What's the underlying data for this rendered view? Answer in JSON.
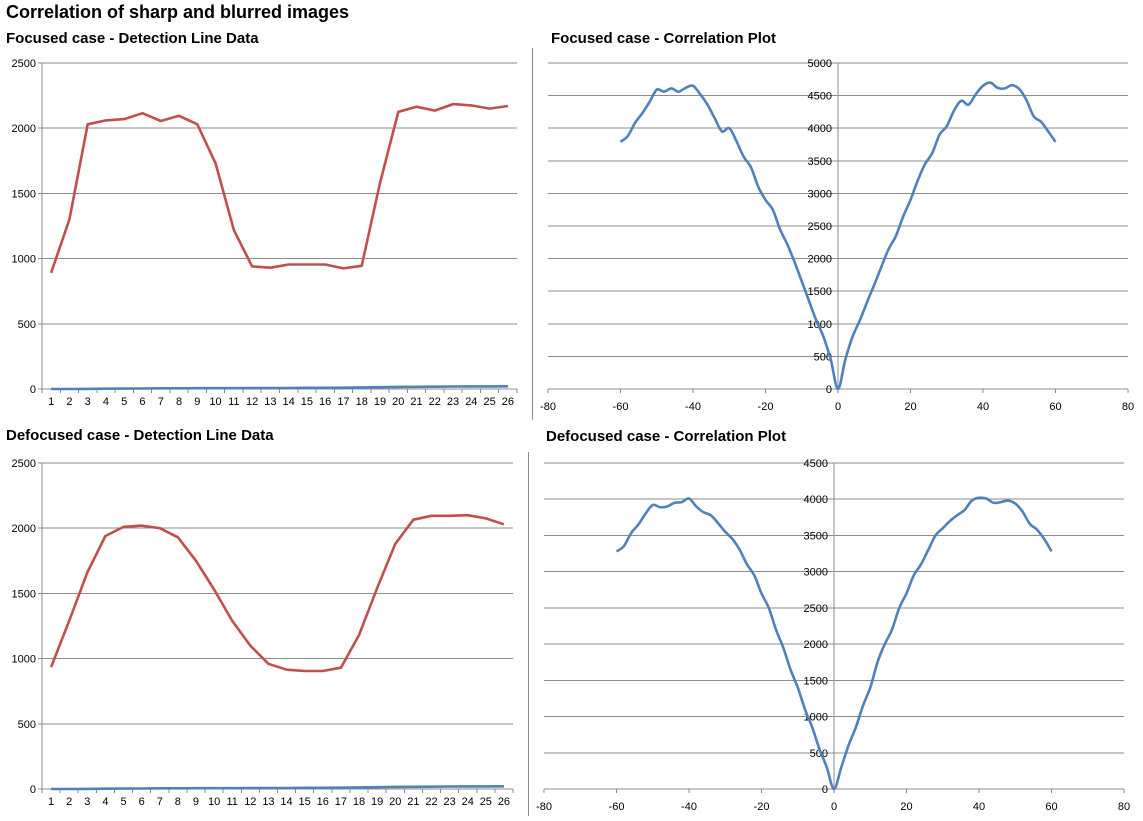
{
  "page": {
    "title": "Correlation of sharp and blurred images"
  },
  "chart_data": [
    {
      "id": "focused_line",
      "type": "line",
      "title": "Focused case - Detection Line Data",
      "xlabel": "",
      "ylabel": "",
      "x_axis_kind": "category",
      "categories": [
        1,
        2,
        3,
        4,
        5,
        6,
        7,
        8,
        9,
        10,
        11,
        12,
        13,
        14,
        15,
        16,
        17,
        18,
        19,
        20,
        21,
        22,
        23,
        24,
        25,
        26
      ],
      "ylim": [
        0,
        2500
      ],
      "y_ticks": [
        0,
        500,
        1000,
        1500,
        2000,
        2500
      ],
      "grid": true,
      "legend": "none",
      "series": [
        {
          "color": "#c0504d",
          "values": [
            890,
            1300,
            2030,
            2060,
            2070,
            2115,
            2055,
            2095,
            2030,
            1730,
            1220,
            940,
            930,
            955,
            955,
            955,
            925,
            945,
            1580,
            2125,
            2165,
            2135,
            2185,
            2175,
            2150,
            2170
          ]
        },
        {
          "color": "#4f81bd",
          "values": [
            0,
            0,
            1,
            2,
            3,
            4,
            5,
            5,
            6,
            6,
            6,
            7,
            8,
            8,
            9,
            9,
            10,
            12,
            14,
            16,
            17,
            18,
            19,
            20,
            20,
            21
          ]
        }
      ]
    },
    {
      "id": "focused_corr",
      "type": "line",
      "title": "Focused case - Correlation Plot",
      "xlabel": "",
      "ylabel": "",
      "x_axis_kind": "value",
      "xlim": [
        -80,
        80
      ],
      "x_ticks": [
        -80,
        -60,
        -40,
        -20,
        0,
        20,
        40,
        60,
        80
      ],
      "ylim": [
        0,
        5000
      ],
      "y_ticks": [
        0,
        500,
        1000,
        1500,
        2000,
        2500,
        3000,
        3500,
        4000,
        4500,
        5000
      ],
      "y_axis_position": "at x=0",
      "grid": true,
      "legend": "none",
      "series": [
        {
          "color": "#4f81bd",
          "x": [
            -60,
            -58,
            -56,
            -54,
            -52,
            -50,
            -48,
            -46,
            -44,
            -42,
            -40,
            -38,
            -36,
            -34,
            -32,
            -30,
            -28,
            -26,
            -24,
            -22,
            -20,
            -18,
            -16,
            -14,
            -12,
            -10,
            -8,
            -6,
            -4,
            -2,
            0,
            2,
            4,
            6,
            8,
            10,
            12,
            14,
            16,
            18,
            20,
            22,
            24,
            26,
            28,
            30,
            32,
            34,
            36,
            38,
            40,
            42,
            44,
            46,
            48,
            50,
            52,
            54,
            56,
            58,
            60
          ],
          "y": [
            3790,
            3880,
            4080,
            4230,
            4400,
            4590,
            4560,
            4610,
            4560,
            4620,
            4650,
            4520,
            4360,
            4150,
            3950,
            4000,
            3800,
            3560,
            3400,
            3100,
            2900,
            2750,
            2450,
            2220,
            1950,
            1650,
            1350,
            1050,
            800,
            450,
            0,
            450,
            800,
            1050,
            1330,
            1600,
            1880,
            2150,
            2350,
            2650,
            2900,
            3200,
            3450,
            3620,
            3900,
            4030,
            4270,
            4420,
            4360,
            4520,
            4650,
            4700,
            4620,
            4610,
            4660,
            4600,
            4430,
            4180,
            4100,
            3950,
            3790
          ]
        }
      ]
    },
    {
      "id": "defocused_line",
      "type": "line",
      "title": "Defocused case - Detection Line Data",
      "xlabel": "",
      "ylabel": "",
      "x_axis_kind": "category",
      "categories": [
        1,
        2,
        3,
        4,
        5,
        6,
        7,
        8,
        9,
        10,
        11,
        12,
        13,
        14,
        15,
        16,
        17,
        18,
        19,
        20,
        21,
        22,
        23,
        24,
        25,
        26
      ],
      "ylim": [
        0,
        2500
      ],
      "y_ticks": [
        0,
        500,
        1000,
        1500,
        2000,
        2500
      ],
      "grid": true,
      "legend": "none",
      "series": [
        {
          "color": "#c0504d",
          "values": [
            935,
            1290,
            1660,
            1940,
            2010,
            2020,
            2000,
            1930,
            1750,
            1530,
            1290,
            1100,
            960,
            915,
            905,
            905,
            930,
            1180,
            1540,
            1880,
            2065,
            2095,
            2095,
            2100,
            2075,
            2030
          ]
        },
        {
          "color": "#4f81bd",
          "values": [
            0,
            0,
            1,
            2,
            3,
            4,
            5,
            5,
            6,
            6,
            6,
            7,
            8,
            8,
            9,
            9,
            10,
            12,
            14,
            16,
            17,
            18,
            19,
            20,
            20,
            21
          ]
        }
      ]
    },
    {
      "id": "defocused_corr",
      "type": "line",
      "title": "Defocused case - Correlation Plot",
      "xlabel": "",
      "ylabel": "",
      "x_axis_kind": "value",
      "xlim": [
        -80,
        80
      ],
      "x_ticks": [
        -80,
        -60,
        -40,
        -20,
        0,
        20,
        40,
        60,
        80
      ],
      "ylim": [
        0,
        4500
      ],
      "y_ticks": [
        0,
        500,
        1000,
        1500,
        2000,
        2500,
        3000,
        3500,
        4000,
        4500
      ],
      "y_axis_position": "at x=0",
      "grid": true,
      "legend": "none",
      "series": [
        {
          "color": "#4f81bd",
          "x": [
            -60,
            -58,
            -56,
            -54,
            -52,
            -50,
            -48,
            -46,
            -44,
            -42,
            -40,
            -38,
            -36,
            -34,
            -32,
            -30,
            -28,
            -26,
            -24,
            -22,
            -20,
            -18,
            -16,
            -14,
            -12,
            -10,
            -8,
            -6,
            -4,
            -2,
            0,
            2,
            4,
            6,
            8,
            10,
            12,
            14,
            16,
            18,
            20,
            22,
            24,
            26,
            28,
            30,
            32,
            34,
            36,
            38,
            40,
            42,
            44,
            46,
            48,
            50,
            52,
            54,
            56,
            58,
            60
          ],
          "y": [
            3280,
            3350,
            3530,
            3650,
            3800,
            3920,
            3890,
            3900,
            3950,
            3960,
            4010,
            3900,
            3820,
            3780,
            3670,
            3550,
            3450,
            3300,
            3100,
            2950,
            2700,
            2500,
            2200,
            1950,
            1650,
            1400,
            1100,
            850,
            550,
            300,
            0,
            300,
            600,
            850,
            1150,
            1400,
            1750,
            2000,
            2200,
            2500,
            2700,
            2950,
            3100,
            3300,
            3500,
            3600,
            3700,
            3780,
            3850,
            3980,
            4020,
            4010,
            3950,
            3960,
            3980,
            3940,
            3830,
            3660,
            3580,
            3450,
            3280
          ]
        }
      ]
    }
  ]
}
